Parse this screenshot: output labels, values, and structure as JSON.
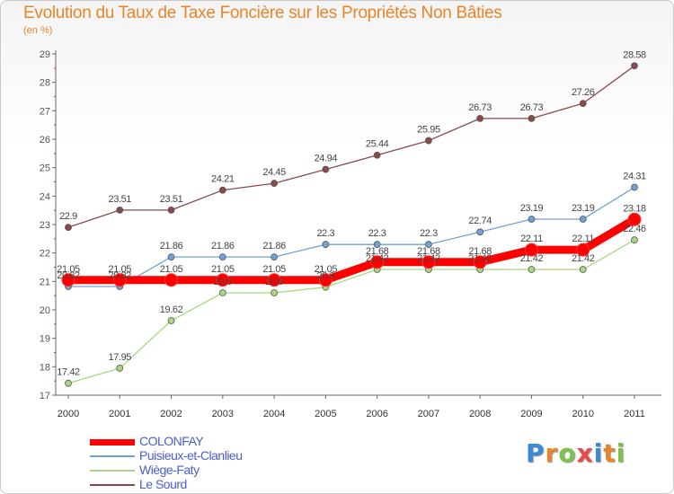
{
  "header": {
    "title": "Evolution du Taux de Taxe Foncière sur les Propriétés Non Bâties",
    "unit": "(en %)"
  },
  "logo": {
    "text": "Proxiti"
  },
  "chart_data": {
    "type": "line",
    "title": "Evolution du Taux de Taxe Foncière sur les Propriétés Non Bâties",
    "ylabel": "(en %)",
    "xlabel": "",
    "ylim": [
      17,
      29
    ],
    "yticks": [
      "17",
      "18",
      "19",
      "20",
      "21",
      "22",
      "23",
      "24",
      "25",
      "26",
      "27",
      "28",
      "29"
    ],
    "categories": [
      "2000",
      "2001",
      "2002",
      "2003",
      "2004",
      "2005",
      "2006",
      "2007",
      "2008",
      "2009",
      "2010",
      "2011"
    ],
    "grid": false,
    "legend_position": "bottom-left",
    "series": [
      {
        "name": "COLONFAY",
        "color": "#ff0000",
        "values": [
          21.05,
          21.05,
          21.05,
          21.05,
          21.05,
          21.05,
          21.68,
          21.68,
          21.68,
          22.11,
          22.11,
          23.18
        ],
        "labels": [
          "21.05",
          "21.05",
          "21.05",
          "21.05",
          "21.05",
          "21.05",
          "21.68",
          "21.68",
          "21.68",
          "22.11",
          "22.11",
          "23.18"
        ]
      },
      {
        "name": "Puisieux-et-Clanlieu",
        "color": "#6fa2d6",
        "values": [
          20.82,
          20.82,
          21.86,
          21.86,
          21.86,
          22.3,
          22.3,
          22.3,
          22.74,
          23.19,
          23.19,
          24.31
        ],
        "labels": [
          "20.82",
          "20.82",
          "21.86",
          "21.86",
          "21.86",
          "22.3",
          "22.3",
          "22.3",
          "22.74",
          "23.19",
          "23.19",
          "24.31"
        ]
      },
      {
        "name": "Wiège-Faty",
        "color": "#a6d97f",
        "values": [
          17.42,
          17.95,
          19.62,
          20.6,
          20.6,
          20.8,
          21.42,
          21.42,
          21.42,
          21.42,
          21.42,
          22.46
        ],
        "labels": [
          "17.42",
          "17.95",
          "19.62",
          "20.6",
          "20.6",
          "20.8",
          "21.42",
          "21.42",
          "21.42",
          "21.42",
          "21.42",
          "22.46"
        ]
      },
      {
        "name": "Le Sourd",
        "color": "#8a4a4a",
        "values": [
          22.9,
          23.51,
          23.51,
          24.21,
          24.45,
          24.94,
          25.44,
          25.95,
          26.73,
          26.73,
          27.26,
          28.58
        ],
        "labels": [
          "22.9",
          "23.51",
          "23.51",
          "24.21",
          "24.45",
          "24.94",
          "25.44",
          "25.95",
          "26.73",
          "26.73",
          "27.26",
          "28.58"
        ]
      }
    ]
  }
}
